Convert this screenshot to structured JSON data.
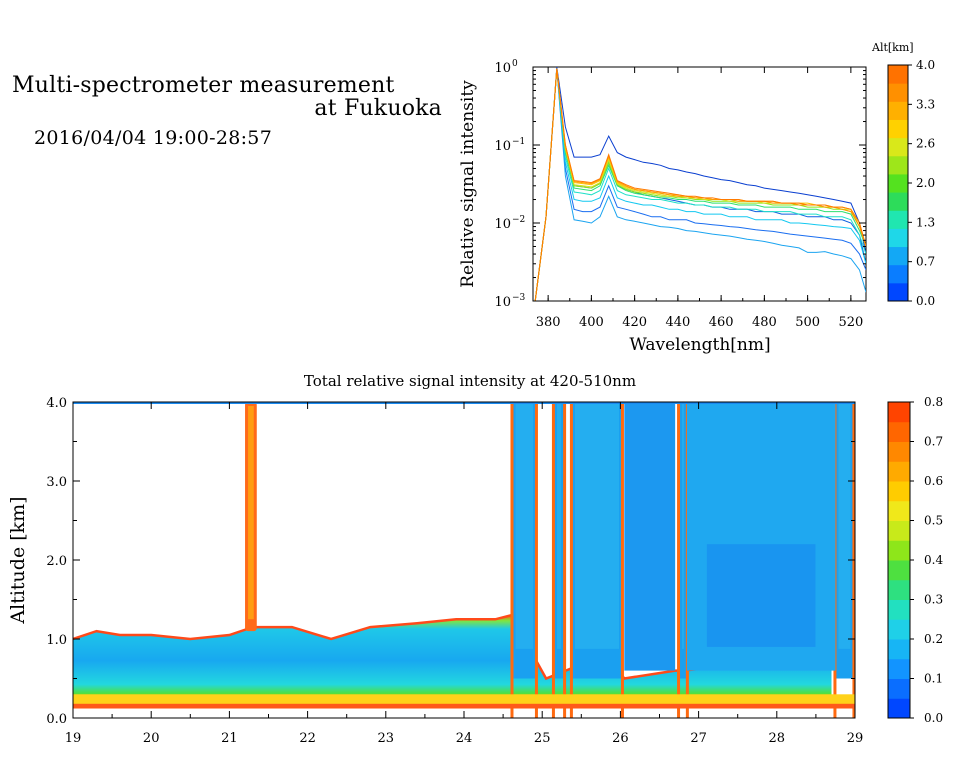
{
  "header": {
    "title_line1": "Multi-spectrometer measurement",
    "title_line2": "at Fukuoka",
    "datetime": "2016/04/04 19:00-28:57"
  },
  "chart_data": [
    {
      "type": "line",
      "ylabel": "Relative signal intensity",
      "xlabel": "Wavelength[nm]",
      "yscale": "log",
      "xlim": [
        373,
        527
      ],
      "ylim": [
        0.001,
        1
      ],
      "x_ticks": [
        "380",
        "400",
        "420",
        "440",
        "460",
        "480",
        "500",
        "520"
      ],
      "y_ticks": [
        "10",
        "10",
        "10",
        "10"
      ],
      "y_tick_exponents": [
        "0",
        "−1",
        "−2",
        "−3"
      ],
      "colorbar": {
        "title": "Alt[km]",
        "tick_labels": [
          "4.0",
          "3.3",
          "2.6",
          "2.0",
          "1.3",
          "0.7",
          "0.0"
        ],
        "colors": [
          "#0047ff",
          "#0a7dff",
          "#13a8f5",
          "#1fd7e8",
          "#20e6b0",
          "#2ddc5a",
          "#54e21f",
          "#9ee61a",
          "#d9e81a",
          "#ffd100",
          "#ffb000",
          "#ff9000",
          "#ff7200"
        ]
      },
      "x": [
        374,
        379,
        384,
        388,
        392,
        396,
        400,
        404,
        408,
        412,
        416,
        420,
        424,
        428,
        432,
        436,
        440,
        444,
        448,
        452,
        456,
        460,
        464,
        468,
        472,
        476,
        480,
        484,
        488,
        492,
        496,
        500,
        504,
        508,
        512,
        516,
        520,
        524,
        527
      ],
      "series": [
        {
          "color": "#0a3fd0",
          "values": [
            0.001,
            0.012,
            1.0,
            0.17,
            0.07,
            0.07,
            0.07,
            0.075,
            0.13,
            0.08,
            0.07,
            0.065,
            0.06,
            0.058,
            0.055,
            0.05,
            0.048,
            0.045,
            0.043,
            0.04,
            0.038,
            0.036,
            0.035,
            0.033,
            0.031,
            0.03,
            0.028,
            0.027,
            0.026,
            0.025,
            0.024,
            0.023,
            0.022,
            0.021,
            0.02,
            0.019,
            0.018,
            0.01,
            0.004
          ]
        },
        {
          "color": "#0d5fe0",
          "values": [
            0.001,
            0.012,
            0.95,
            0.09,
            0.03,
            0.029,
            0.028,
            0.032,
            0.06,
            0.03,
            0.027,
            0.025,
            0.023,
            0.022,
            0.021,
            0.02,
            0.019,
            0.018,
            0.017,
            0.017,
            0.016,
            0.016,
            0.015,
            0.015,
            0.015,
            0.014,
            0.014,
            0.014,
            0.013,
            0.013,
            0.013,
            0.012,
            0.012,
            0.012,
            0.011,
            0.011,
            0.01,
            0.007,
            0.003
          ]
        },
        {
          "color": "#1a6ef0",
          "values": [
            0.001,
            0.012,
            0.95,
            0.05,
            0.015,
            0.014,
            0.014,
            0.016,
            0.03,
            0.016,
            0.015,
            0.014,
            0.013,
            0.012,
            0.012,
            0.011,
            0.011,
            0.011,
            0.01,
            0.0098,
            0.0095,
            0.0093,
            0.009,
            0.0088,
            0.0085,
            0.0082,
            0.008,
            0.0078,
            0.0075,
            0.0072,
            0.007,
            0.0068,
            0.0066,
            0.0064,
            0.0062,
            0.006,
            0.0055,
            0.004,
            0.0025
          ]
        },
        {
          "color": "#1ba4f0",
          "values": [
            0.001,
            0.012,
            0.95,
            0.04,
            0.011,
            0.0105,
            0.01,
            0.012,
            0.022,
            0.012,
            0.011,
            0.0105,
            0.01,
            0.0095,
            0.009,
            0.0088,
            0.0085,
            0.008,
            0.0078,
            0.0075,
            0.0072,
            0.007,
            0.0068,
            0.0065,
            0.0062,
            0.006,
            0.0058,
            0.0055,
            0.0052,
            0.005,
            0.0048,
            0.0042,
            0.0042,
            0.0043,
            0.004,
            0.0038,
            0.0035,
            0.0025,
            0.0013
          ]
        },
        {
          "color": "#13c8f0",
          "values": [
            0.001,
            0.012,
            0.95,
            0.06,
            0.02,
            0.019,
            0.019,
            0.021,
            0.04,
            0.021,
            0.019,
            0.018,
            0.017,
            0.017,
            0.016,
            0.015,
            0.015,
            0.014,
            0.014,
            0.013,
            0.013,
            0.013,
            0.012,
            0.012,
            0.012,
            0.011,
            0.011,
            0.011,
            0.011,
            0.01,
            0.01,
            0.0098,
            0.0095,
            0.0093,
            0.009,
            0.0088,
            0.0085,
            0.006,
            0.003
          ]
        },
        {
          "color": "#20e0c8",
          "values": [
            0.001,
            0.012,
            0.95,
            0.07,
            0.025,
            0.024,
            0.023,
            0.026,
            0.05,
            0.026,
            0.023,
            0.022,
            0.021,
            0.02,
            0.02,
            0.019,
            0.018,
            0.018,
            0.017,
            0.017,
            0.016,
            0.016,
            0.016,
            0.015,
            0.015,
            0.015,
            0.014,
            0.014,
            0.014,
            0.014,
            0.013,
            0.013,
            0.013,
            0.012,
            0.012,
            0.012,
            0.011,
            0.007,
            0.004
          ]
        },
        {
          "color": "#2ee070",
          "values": [
            0.001,
            0.012,
            0.95,
            0.08,
            0.028,
            0.027,
            0.026,
            0.03,
            0.055,
            0.03,
            0.026,
            0.024,
            0.023,
            0.022,
            0.021,
            0.021,
            0.02,
            0.02,
            0.019,
            0.019,
            0.018,
            0.018,
            0.018,
            0.017,
            0.017,
            0.017,
            0.016,
            0.016,
            0.016,
            0.016,
            0.015,
            0.015,
            0.015,
            0.014,
            0.014,
            0.014,
            0.013,
            0.008,
            0.005
          ]
        },
        {
          "color": "#8ce61a",
          "values": [
            0.001,
            0.012,
            0.95,
            0.09,
            0.03,
            0.029,
            0.028,
            0.032,
            0.06,
            0.031,
            0.027,
            0.025,
            0.024,
            0.023,
            0.022,
            0.022,
            0.021,
            0.021,
            0.02,
            0.02,
            0.019,
            0.019,
            0.019,
            0.018,
            0.018,
            0.018,
            0.018,
            0.017,
            0.017,
            0.017,
            0.017,
            0.016,
            0.016,
            0.016,
            0.015,
            0.015,
            0.014,
            0.009,
            0.005
          ]
        },
        {
          "color": "#d8e01a",
          "values": [
            0.001,
            0.012,
            0.95,
            0.09,
            0.031,
            0.03,
            0.029,
            0.033,
            0.065,
            0.032,
            0.028,
            0.026,
            0.025,
            0.024,
            0.023,
            0.022,
            0.022,
            0.021,
            0.021,
            0.02,
            0.02,
            0.02,
            0.019,
            0.019,
            0.019,
            0.019,
            0.018,
            0.018,
            0.018,
            0.018,
            0.017,
            0.017,
            0.017,
            0.016,
            0.016,
            0.015,
            0.015,
            0.009,
            0.005
          ]
        },
        {
          "color": "#ffc000",
          "values": [
            0.001,
            0.012,
            0.95,
            0.09,
            0.033,
            0.032,
            0.031,
            0.035,
            0.07,
            0.033,
            0.029,
            0.027,
            0.026,
            0.025,
            0.024,
            0.023,
            0.023,
            0.022,
            0.021,
            0.021,
            0.02,
            0.02,
            0.02,
            0.02,
            0.019,
            0.019,
            0.019,
            0.019,
            0.018,
            0.018,
            0.018,
            0.018,
            0.017,
            0.017,
            0.016,
            0.016,
            0.015,
            0.01,
            0.005
          ]
        },
        {
          "color": "#ff9a00",
          "values": [
            0.001,
            0.012,
            0.95,
            0.1,
            0.034,
            0.033,
            0.032,
            0.036,
            0.072,
            0.034,
            0.03,
            0.027,
            0.026,
            0.025,
            0.024,
            0.023,
            0.022,
            0.022,
            0.021,
            0.021,
            0.02,
            0.02,
            0.02,
            0.019,
            0.019,
            0.019,
            0.019,
            0.018,
            0.018,
            0.018,
            0.017,
            0.017,
            0.017,
            0.016,
            0.016,
            0.015,
            0.014,
            0.009,
            0.005
          ]
        },
        {
          "color": "#ff7a00",
          "values": [
            0.001,
            0.012,
            0.95,
            0.1,
            0.035,
            0.034,
            0.033,
            0.037,
            0.075,
            0.035,
            0.031,
            0.028,
            0.027,
            0.026,
            0.025,
            0.024,
            0.023,
            0.022,
            0.022,
            0.021,
            0.021,
            0.02,
            0.02,
            0.02,
            0.019,
            0.019,
            0.019,
            0.019,
            0.018,
            0.018,
            0.018,
            0.017,
            0.017,
            0.017,
            0.016,
            0.016,
            0.015,
            0.01,
            0.005
          ]
        }
      ]
    },
    {
      "type": "heatmap",
      "title": "Total relative signal intensity at 420-510nm",
      "ylabel": "Altitude [km]",
      "xlim": [
        19,
        29
      ],
      "ylim": [
        0,
        4
      ],
      "x_ticks": [
        "19",
        "20",
        "21",
        "22",
        "23",
        "24",
        "25",
        "26",
        "27",
        "28",
        "29"
      ],
      "y_ticks": [
        "0.0",
        "1.0",
        "2.0",
        "3.0",
        "4.0"
      ],
      "colorbar": {
        "tick_labels": [
          "0.8",
          "0.7",
          "0.6",
          "0.5",
          "0.4",
          "0.3",
          "0.2",
          "0.1",
          "0.0"
        ],
        "colors": [
          "#0047ff",
          "#0a6eff",
          "#1294ff",
          "#17b5f5",
          "#1fd0e8",
          "#22e0c0",
          "#2ee080",
          "#4ee040",
          "#8ee61a",
          "#c8ea1a",
          "#f0e81a",
          "#ffcc00",
          "#ffaa00",
          "#ff8800",
          "#ff6600",
          "#ff4400"
        ]
      },
      "cloud_base_km": [
        [
          19.0,
          1.0
        ],
        [
          19.3,
          1.1
        ],
        [
          19.6,
          1.05
        ],
        [
          20.0,
          1.05
        ],
        [
          20.5,
          1.0
        ],
        [
          21.0,
          1.05
        ],
        [
          21.3,
          1.15
        ],
        [
          21.8,
          1.15
        ],
        [
          22.3,
          1.0
        ],
        [
          22.8,
          1.15
        ],
        [
          23.4,
          1.2
        ],
        [
          23.9,
          1.25
        ],
        [
          24.4,
          1.25
        ],
        [
          24.6,
          1.3
        ],
        [
          25.05,
          0.5
        ],
        [
          25.3,
          0.6
        ],
        [
          25.55,
          0.7
        ],
        [
          25.9,
          0.7
        ],
        [
          26.05,
          0.5
        ],
        [
          26.7,
          0.6
        ],
        [
          26.8,
          0.6
        ],
        [
          28.7,
          0.8
        ]
      ],
      "clear_gaps_hr": [
        [
          24.62,
          24.92
        ],
        [
          25.15,
          25.28
        ],
        [
          25.38,
          26.02
        ],
        [
          26.75,
          26.85
        ],
        [
          28.75,
          28.98
        ]
      ],
      "high_cloud_hr": [
        21.2,
        21.35
      ]
    }
  ]
}
